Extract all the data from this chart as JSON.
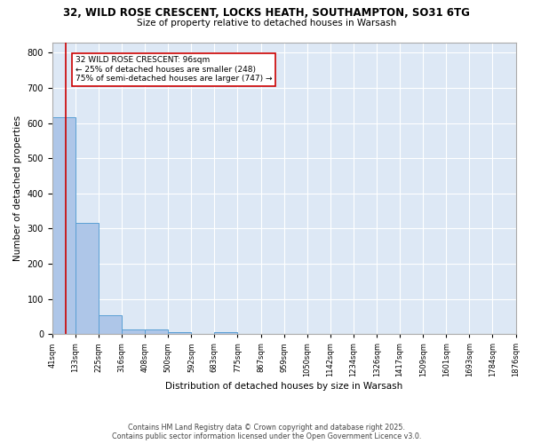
{
  "title_line1": "32, WILD ROSE CRESCENT, LOCKS HEATH, SOUTHAMPTON, SO31 6TG",
  "title_line2": "Size of property relative to detached houses in Warsash",
  "xlabel": "Distribution of detached houses by size in Warsash",
  "ylabel": "Number of detached properties",
  "bin_edges": [
    41,
    133,
    225,
    316,
    408,
    500,
    592,
    683,
    775,
    867,
    959,
    1050,
    1142,
    1234,
    1326,
    1417,
    1509,
    1601,
    1693,
    1784,
    1876
  ],
  "bar_heights": [
    617,
    316,
    54,
    13,
    13,
    5,
    0,
    6,
    0,
    0,
    0,
    0,
    0,
    0,
    0,
    0,
    0,
    0,
    0,
    0
  ],
  "bar_color": "#aec6e8",
  "bar_edge_color": "#5a9fd4",
  "subject_value": 96,
  "annotation_line1": "32 WILD ROSE CRESCENT: 96sqm",
  "annotation_line2": "← 25% of detached houses are smaller (248)",
  "annotation_line3": "75% of semi-detached houses are larger (747) →",
  "vline_color": "#cc0000",
  "annotation_box_edge": "#cc0000",
  "fig_background_color": "#ffffff",
  "plot_background_color": "#dde8f5",
  "grid_color": "#ffffff",
  "ylim": [
    0,
    830
  ],
  "yticks": [
    0,
    100,
    200,
    300,
    400,
    500,
    600,
    700,
    800
  ],
  "footer_line1": "Contains HM Land Registry data © Crown copyright and database right 2025.",
  "footer_line2": "Contains public sector information licensed under the Open Government Licence v3.0."
}
